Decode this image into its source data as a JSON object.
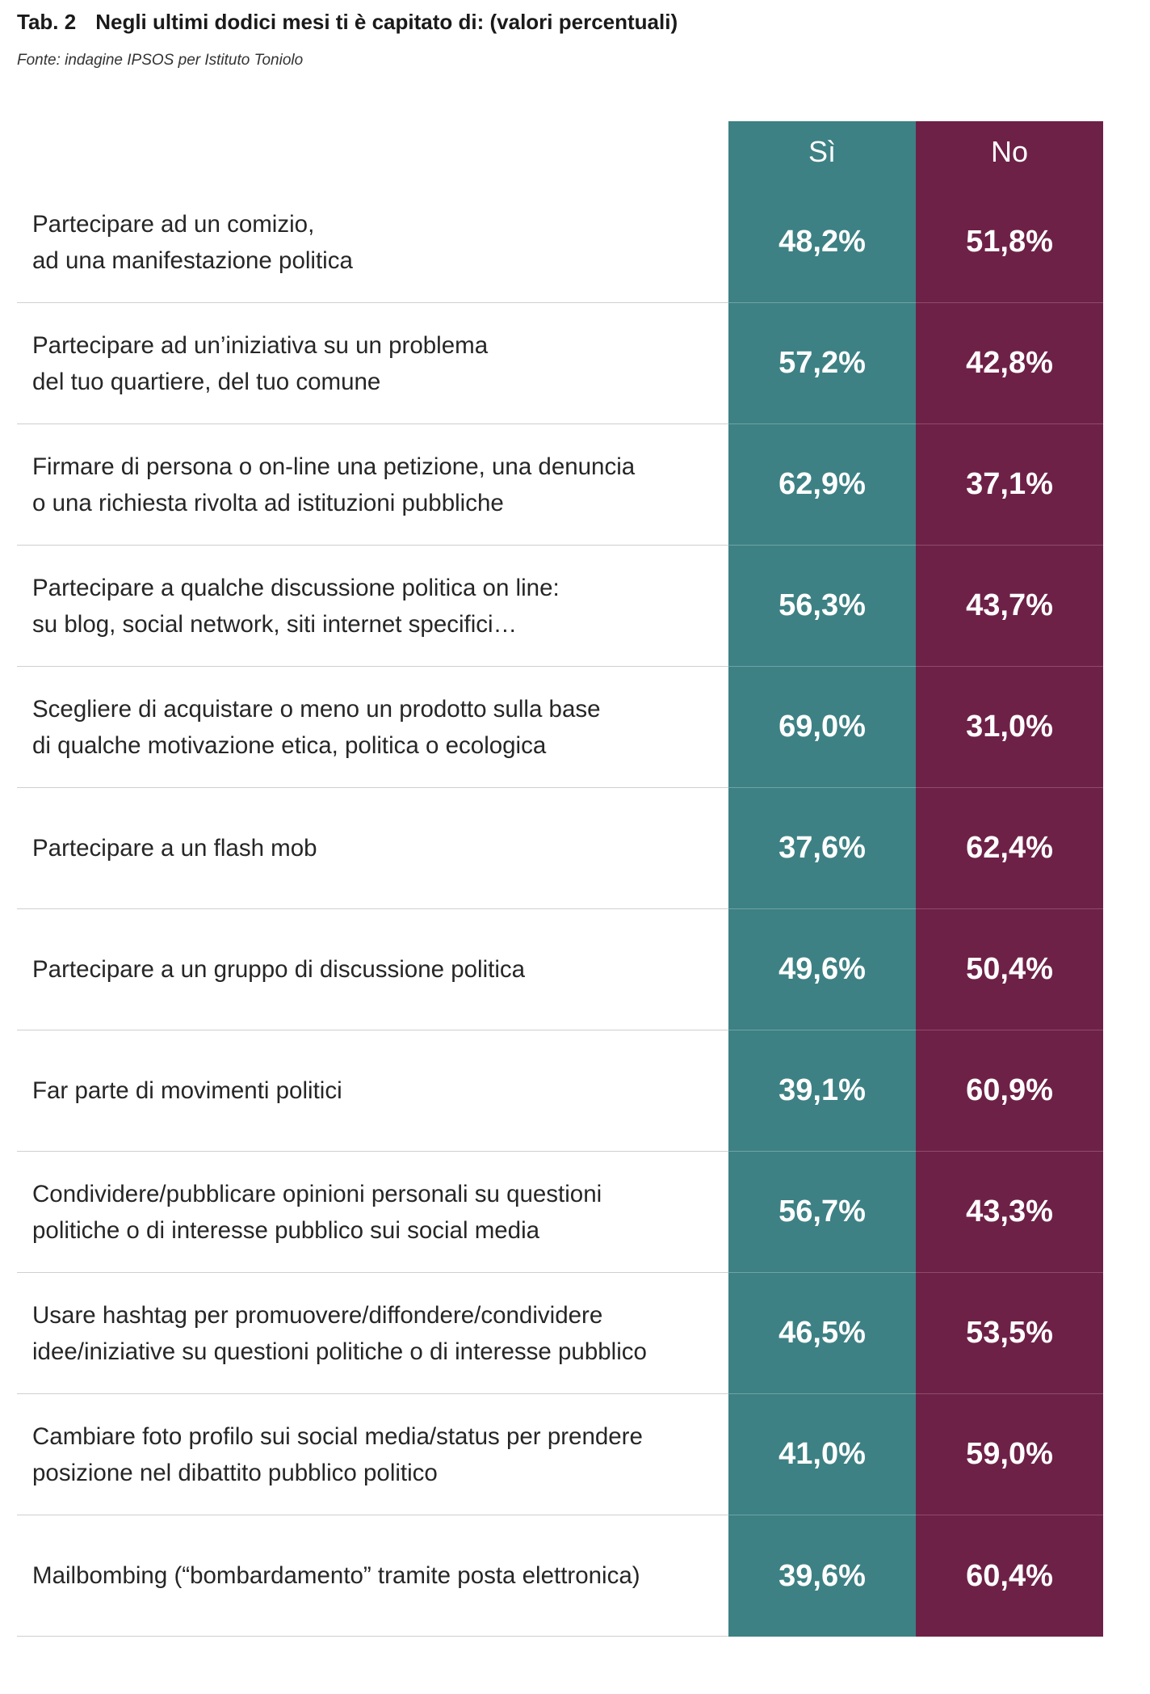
{
  "header": {
    "table_number": "Tab. 2",
    "title": "Negli ultimi dodici mesi ti è capitato di: (valori percentuali)",
    "source": "Fonte: indagine IPSOS per Istituto Toniolo"
  },
  "colors": {
    "si": "#3d8184",
    "no": "#6e2147"
  },
  "chart_data": {
    "type": "table",
    "columns": [
      "Sì",
      "No"
    ],
    "rows": [
      {
        "label": "Partecipare ad un comizio,\nad una manifestazione politica",
        "si": "48,2%",
        "no": "51,8%"
      },
      {
        "label": "Partecipare ad un’iniziativa su un problema\ndel tuo quartiere, del tuo comune",
        "si": "57,2%",
        "no": "42,8%"
      },
      {
        "label": "Firmare di persona o on-line una petizione, una denuncia\no una richiesta rivolta ad istituzioni pubbliche",
        "si": "62,9%",
        "no": "37,1%"
      },
      {
        "label": "Partecipare a qualche discussione politica on line:\nsu blog, social network, siti internet specifici…",
        "si": "56,3%",
        "no": "43,7%"
      },
      {
        "label": "Scegliere di acquistare o meno un prodotto sulla base\ndi qualche motivazione etica, politica o ecologica",
        "si": "69,0%",
        "no": "31,0%"
      },
      {
        "label": "Partecipare a un flash mob",
        "si": "37,6%",
        "no": "62,4%"
      },
      {
        "label": "Partecipare a un gruppo di discussione politica",
        "si": "49,6%",
        "no": "50,4%"
      },
      {
        "label": "Far parte di movimenti politici",
        "si": "39,1%",
        "no": "60,9%"
      },
      {
        "label": "Condividere/pubblicare opinioni personali su questioni\npolitiche o di interesse pubblico sui social media",
        "si": "56,7%",
        "no": "43,3%"
      },
      {
        "label": "Usare hashtag per promuovere/diffondere/condividere\nidee/iniziative su questioni politiche o di interesse pubblico",
        "si": "46,5%",
        "no": "53,5%"
      },
      {
        "label": "Cambiare foto profilo sui social media/status per prendere\nposizione nel dibattito pubblico politico",
        "si": "41,0%",
        "no": "59,0%"
      },
      {
        "label": "Mailbombing (“bombardamento” tramite posta elettronica)",
        "si": "39,6%",
        "no": "60,4%"
      }
    ]
  }
}
